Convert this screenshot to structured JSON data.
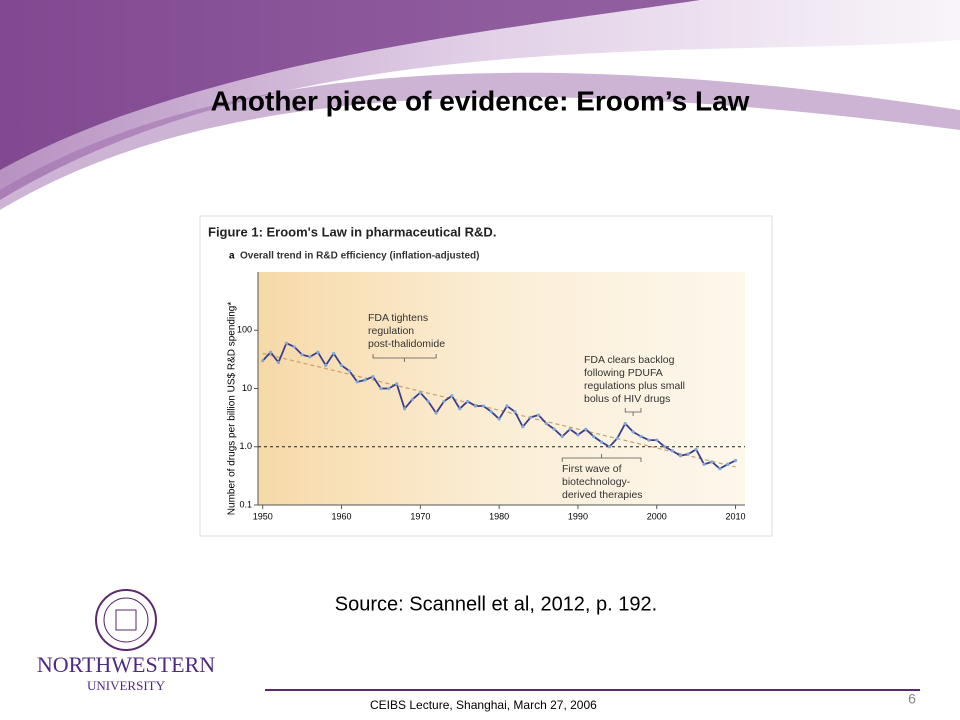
{
  "slide": {
    "title": "Another piece of evidence: Eroom’s Law",
    "source": "Source: Scannell et al, 2012, p. 192.",
    "footer": "CEIBS Lecture, Shanghai, March 27, 2006",
    "page_number": "6",
    "logo": {
      "name": "NORTHWESTERN",
      "sub": "UNIVERSITY"
    }
  },
  "chart_data": {
    "type": "line",
    "title": "Figure 1: Eroom's Law in pharmaceutical R&D.",
    "panel": "a",
    "subtitle": "Overall trend in R&D efficiency (inflation-adjusted)",
    "y_label": "Number of drugs per billion US$ R&D spending*",
    "log_y": true,
    "x": [
      1950,
      1951,
      1952,
      1953,
      1954,
      1955,
      1956,
      1957,
      1958,
      1959,
      1960,
      1961,
      1962,
      1963,
      1964,
      1965,
      1966,
      1967,
      1968,
      1969,
      1970,
      1971,
      1972,
      1973,
      1974,
      1975,
      1976,
      1977,
      1978,
      1979,
      1980,
      1981,
      1982,
      1983,
      1984,
      1985,
      1986,
      1987,
      1988,
      1989,
      1990,
      1991,
      1992,
      1993,
      1994,
      1995,
      1996,
      1997,
      1998,
      1999,
      2000,
      2001,
      2002,
      2003,
      2004,
      2005,
      2006,
      2007,
      2008,
      2009,
      2010
    ],
    "series": [
      {
        "color": "#3c3f8c",
        "values": [
          30,
          42,
          28,
          60,
          52,
          38,
          35,
          42,
          25,
          40,
          25,
          20,
          13,
          14,
          16,
          10,
          10,
          12,
          4.5,
          6.5,
          8.5,
          6,
          3.8,
          6,
          7.5,
          4.5,
          6,
          5,
          5,
          4,
          3,
          5,
          4,
          2.2,
          3.2,
          3.5,
          2.5,
          2,
          1.5,
          2,
          1.6,
          2,
          1.5,
          1.2,
          1.0,
          1.4,
          2.5,
          1.8,
          1.5,
          1.3,
          1.3,
          1.0,
          0.85,
          0.7,
          0.75,
          0.9,
          0.5,
          0.55,
          0.42,
          0.5,
          0.58
        ]
      }
    ],
    "trend": {
      "color": "#c9a06c",
      "x": [
        1950,
        2010
      ],
      "values": [
        40,
        0.45
      ]
    },
    "reference_line": 1,
    "xlim": [
      1949.4,
      2011.2
    ],
    "ylim": [
      0.1,
      1000
    ],
    "xticks": [
      1950,
      1960,
      1970,
      1980,
      1990,
      2000,
      2010
    ],
    "yticks": [
      0.1,
      {
        "value": 1,
        "label": "1.0"
      },
      10,
      100
    ],
    "annotations": [
      {
        "lines": [
          "FDA tightens",
          "regulation",
          "post-thalidomide"
        ]
      },
      {
        "lines": [
          "FDA clears backlog",
          "following PDUFA",
          "regulations plus small",
          "bolus of HIV drugs"
        ]
      },
      {
        "lines": [
          "First wave of",
          "biotechnology-",
          "derived therapies"
        ]
      }
    ]
  }
}
